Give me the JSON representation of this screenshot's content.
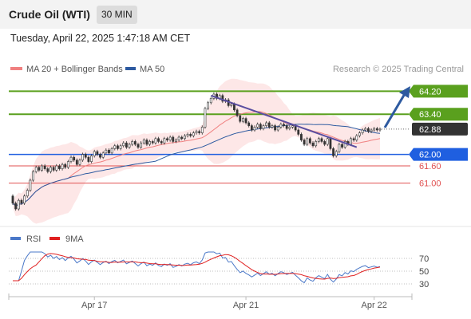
{
  "header": {
    "title": "Crude Oil (WTI)",
    "timeframe": "30 MIN"
  },
  "datetime": "Tuesday, April 22, 2025 1:47:18 AM CET",
  "legend": {
    "bollinger": {
      "label": "MA 20 + Bollinger Bands",
      "color": "#f08080"
    },
    "ma50": {
      "label": "MA 50",
      "color": "#2d5aa0"
    }
  },
  "credit": "Research © 2025 Trading Central",
  "rsi_legend": {
    "rsi": {
      "label": "RSI",
      "color": "#4a78c8"
    },
    "ma9": {
      "label": "9MA",
      "color": "#e02020"
    }
  },
  "chart_data": [
    {
      "type": "candlestick",
      "x_axis": {
        "tick_labels": [
          "Apr 17",
          "Apr 21",
          "Apr 22"
        ],
        "bar_index_range": [
          0,
          135
        ]
      },
      "y_axis": {
        "range": [
          59.6,
          64.6
        ]
      },
      "levels": [
        {
          "label": "64.20",
          "value": 64.2,
          "color": "#5aa01e",
          "style": "resistance"
        },
        {
          "label": "63.40",
          "value": 63.4,
          "color": "#5aa01e",
          "style": "resistance"
        },
        {
          "label": "62.88",
          "value": 62.88,
          "color": "#333333",
          "style": "last-price"
        },
        {
          "label": "62.00",
          "value": 62.0,
          "color": "#1f5fe0",
          "style": "pivot"
        },
        {
          "label": "61.60",
          "value": 61.6,
          "color": "#e05050",
          "style": "support"
        },
        {
          "label": "61.00",
          "value": 61.0,
          "color": "#e05050",
          "style": "support"
        }
      ],
      "candles": [
        [
          60.55,
          60.3
        ],
        [
          60.3,
          60.1
        ],
        [
          60.1,
          60.4
        ],
        [
          60.4,
          60.3
        ],
        [
          60.3,
          60.55
        ],
        [
          60.55,
          60.75
        ],
        [
          60.75,
          61.1
        ],
        [
          61.1,
          61.4
        ],
        [
          61.4,
          61.55
        ],
        [
          61.55,
          61.45
        ],
        [
          61.45,
          61.6
        ],
        [
          61.6,
          61.5
        ],
        [
          61.5,
          61.4
        ],
        [
          61.4,
          61.55
        ],
        [
          61.55,
          61.45
        ],
        [
          61.45,
          61.6
        ],
        [
          61.6,
          61.5
        ],
        [
          61.5,
          61.65
        ],
        [
          61.65,
          61.55
        ],
        [
          61.55,
          61.75
        ],
        [
          61.75,
          61.9
        ],
        [
          61.9,
          61.8
        ],
        [
          61.8,
          61.65
        ],
        [
          61.65,
          61.8
        ],
        [
          61.8,
          62.0
        ],
        [
          62.0,
          61.9
        ],
        [
          61.9,
          61.75
        ],
        [
          61.75,
          61.95
        ],
        [
          61.95,
          62.1
        ],
        [
          62.1,
          62.0
        ],
        [
          62.0,
          61.9
        ],
        [
          61.9,
          62.05
        ],
        [
          62.05,
          62.15
        ],
        [
          62.15,
          62.05
        ],
        [
          62.05,
          62.2
        ],
        [
          62.2,
          62.3
        ],
        [
          62.3,
          62.2
        ],
        [
          62.2,
          62.3
        ],
        [
          62.3,
          62.4
        ],
        [
          62.4,
          62.25
        ],
        [
          62.25,
          62.35
        ],
        [
          62.35,
          62.45
        ],
        [
          62.45,
          62.35
        ],
        [
          62.35,
          62.25
        ],
        [
          62.25,
          62.4
        ],
        [
          62.4,
          62.5
        ],
        [
          62.5,
          62.35
        ],
        [
          62.35,
          62.45
        ],
        [
          62.45,
          62.4
        ],
        [
          62.4,
          62.55
        ],
        [
          62.55,
          62.45
        ],
        [
          62.45,
          62.4
        ],
        [
          62.4,
          62.55
        ],
        [
          62.55,
          62.5
        ],
        [
          62.5,
          62.6
        ],
        [
          62.6,
          62.45
        ],
        [
          62.45,
          62.5
        ],
        [
          62.5,
          62.6
        ],
        [
          62.6,
          62.55
        ],
        [
          62.55,
          62.65
        ],
        [
          62.65,
          62.7
        ],
        [
          62.7,
          62.65
        ],
        [
          62.65,
          62.75
        ],
        [
          62.75,
          62.8
        ],
        [
          62.8,
          62.75
        ],
        [
          62.75,
          62.95
        ],
        [
          62.95,
          63.6
        ],
        [
          63.6,
          63.8
        ],
        [
          63.8,
          63.95
        ],
        [
          63.95,
          64.1
        ],
        [
          64.1,
          63.95
        ],
        [
          63.95,
          64.05
        ],
        [
          64.05,
          63.85
        ],
        [
          63.85,
          63.9
        ],
        [
          63.9,
          63.7
        ],
        [
          63.7,
          63.75
        ],
        [
          63.75,
          63.55
        ],
        [
          63.55,
          63.35
        ],
        [
          63.35,
          63.15
        ],
        [
          63.15,
          63.25
        ],
        [
          63.25,
          63.1
        ],
        [
          63.1,
          63.0
        ],
        [
          63.0,
          62.85
        ],
        [
          62.85,
          62.95
        ],
        [
          62.95,
          63.05
        ],
        [
          63.05,
          62.9
        ],
        [
          62.9,
          63.0
        ],
        [
          63.0,
          63.1
        ],
        [
          63.1,
          62.95
        ],
        [
          62.95,
          63.0
        ],
        [
          63.0,
          62.85
        ],
        [
          62.85,
          62.95
        ],
        [
          62.95,
          63.05
        ],
        [
          63.05,
          63.0
        ],
        [
          63.0,
          62.9
        ],
        [
          62.9,
          62.95
        ],
        [
          62.95,
          63.0
        ],
        [
          63.0,
          62.85
        ],
        [
          62.85,
          62.7
        ],
        [
          62.7,
          62.5
        ],
        [
          62.5,
          62.35
        ],
        [
          62.35,
          62.55
        ],
        [
          62.55,
          62.4
        ],
        [
          62.4,
          62.3
        ],
        [
          62.3,
          62.45
        ],
        [
          62.45,
          62.55
        ],
        [
          62.55,
          62.45
        ],
        [
          62.45,
          62.35
        ],
        [
          62.35,
          62.55
        ],
        [
          62.55,
          62.2
        ],
        [
          62.2,
          61.95
        ],
        [
          61.95,
          62.1
        ],
        [
          62.1,
          62.35
        ],
        [
          62.35,
          62.25
        ],
        [
          62.25,
          62.45
        ],
        [
          62.45,
          62.35
        ],
        [
          62.35,
          62.55
        ],
        [
          62.55,
          62.5
        ],
        [
          62.5,
          62.65
        ],
        [
          62.65,
          62.75
        ],
        [
          62.75,
          62.85
        ],
        [
          62.85,
          62.9
        ],
        [
          62.9,
          62.8
        ],
        [
          62.8,
          62.85
        ],
        [
          62.85,
          62.9
        ],
        [
          62.9,
          62.85
        ],
        [
          62.85,
          62.88
        ]
      ]
    },
    {
      "type": "line",
      "name": "RSI",
      "y_ticks": [
        70,
        50,
        30
      ],
      "y_range": [
        15,
        85
      ]
    }
  ]
}
